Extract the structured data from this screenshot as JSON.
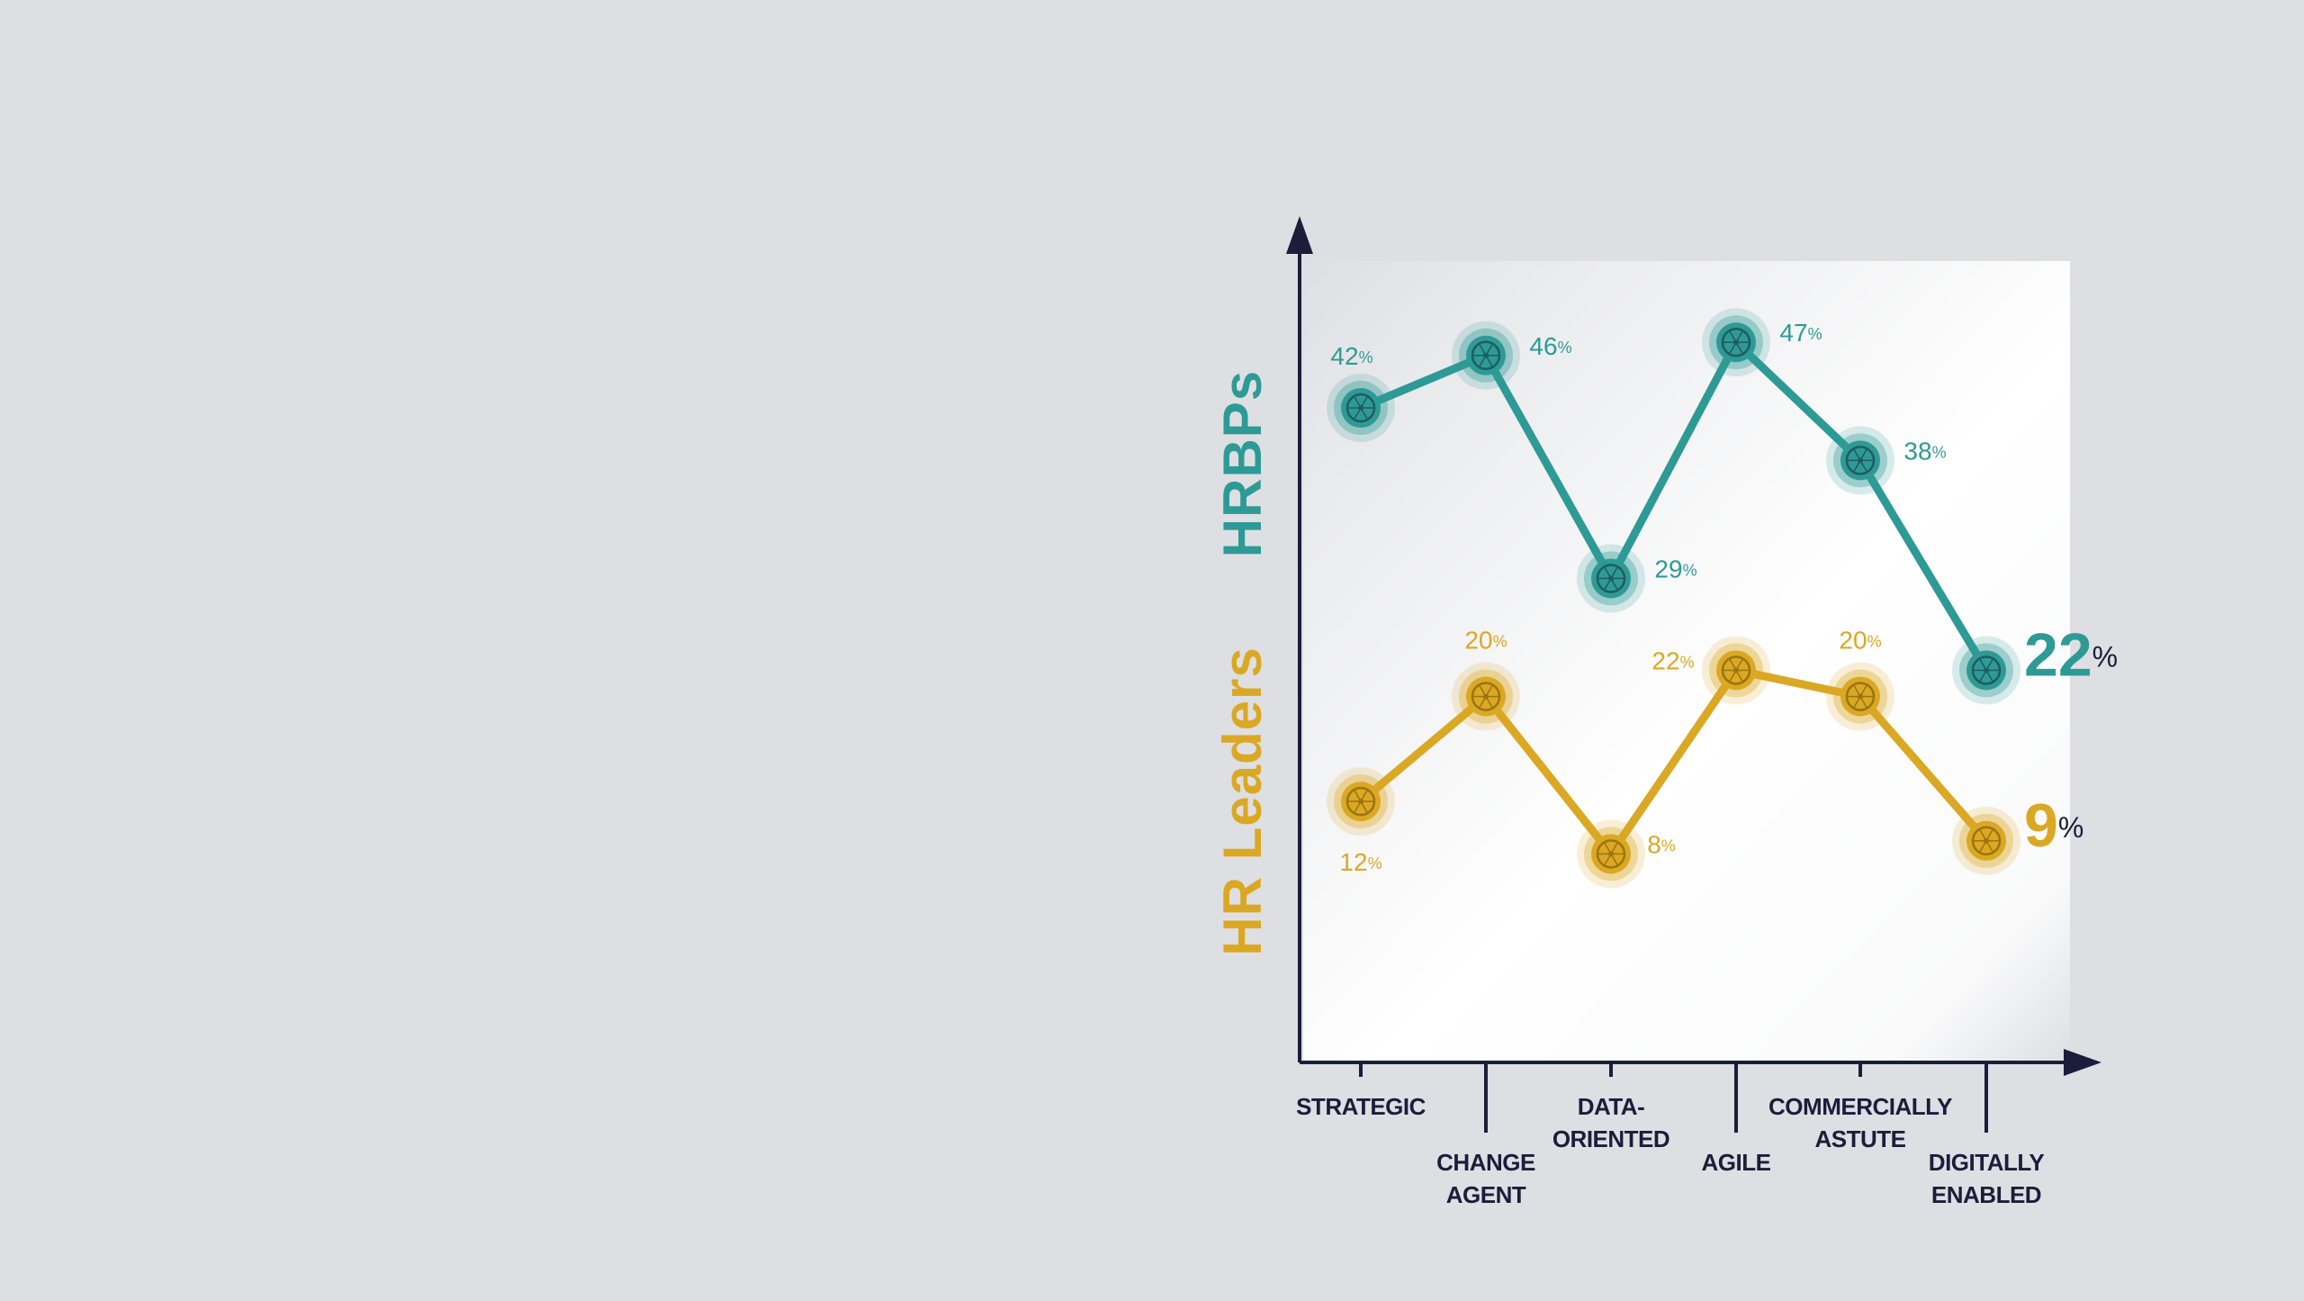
{
  "chart_data": {
    "type": "line",
    "categories": [
      [
        "STRATEGIC"
      ],
      [
        "CHANGE",
        "AGENT"
      ],
      [
        "DATA-",
        "ORIENTED"
      ],
      [
        "AGILE"
      ],
      [
        "COMMERCIALLY",
        "ASTUTE"
      ],
      [
        "DIGITALLY",
        "ENABLED"
      ]
    ],
    "series": [
      {
        "name": "HRBPs",
        "values": [
          42,
          46,
          29,
          47,
          38,
          22
        ],
        "value_labels": [
          "42",
          "46",
          "29",
          "47",
          "38",
          "22"
        ],
        "color": "#2e9a96",
        "dark": "#1f5c60"
      },
      {
        "name": "HR Leaders",
        "values": [
          12,
          20,
          8,
          22,
          20,
          9
        ],
        "value_labels": [
          "12",
          "20",
          "8",
          "22",
          "20",
          "9"
        ],
        "color": "#dba823",
        "dark": "#9a7410"
      }
    ],
    "percent_sign": "%",
    "ylim": [
      0,
      52
    ],
    "axis_color": "#1b1d3a"
  }
}
